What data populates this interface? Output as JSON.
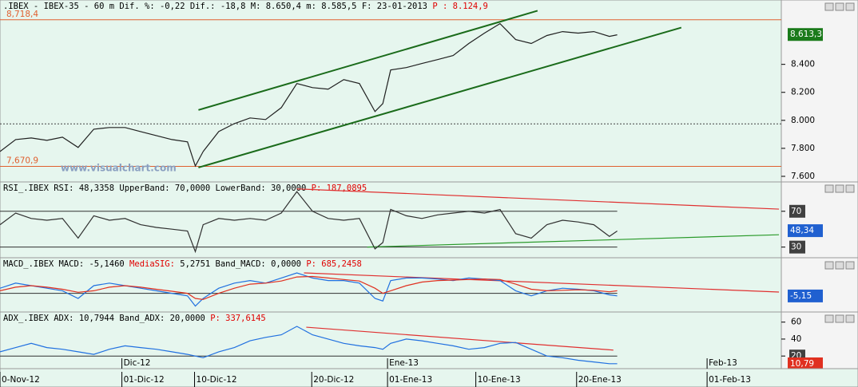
{
  "chart_data": [
    {
      "type": "line",
      "title_segments": [
        {
          "text": ".IBEX - IBEX-35 -  60 m Dif. %:  -0,22 Dif.: -18,8 M: 8.650,4 m: 8.585,5 F: 23-01-2013",
          "color": "#000000"
        },
        {
          "text": "P : 8.124,9",
          "color": "#e00000"
        }
      ],
      "x": [
        0,
        2,
        4,
        6,
        8,
        10,
        12,
        14,
        16,
        18,
        20,
        22,
        24,
        25,
        26,
        28,
        30,
        32,
        34,
        36,
        38,
        40,
        42,
        44,
        46,
        48,
        49,
        50,
        52,
        54,
        56,
        58,
        60,
        62,
        64,
        66,
        68,
        70,
        72,
        74,
        76,
        78,
        79
      ],
      "series": [
        {
          "name": "IBEX-35",
          "color": "#202020",
          "values": [
            7777,
            7863,
            7874,
            7857,
            7880,
            7806,
            7937,
            7949,
            7949,
            7920,
            7891,
            7863,
            7846,
            7674,
            7777,
            7920,
            7977,
            8017,
            8006,
            8091,
            8263,
            8234,
            8223,
            8291,
            8263,
            8063,
            8120,
            8360,
            8377,
            8406,
            8434,
            8463,
            8549,
            8623,
            8691,
            8577,
            8549,
            8606,
            8634,
            8623,
            8634,
            8600,
            8611
          ]
        }
      ],
      "ylim": [
        7560,
        8780
      ],
      "yticks": [
        {
          "value": 8400,
          "label": "8.400"
        },
        {
          "value": 8200,
          "label": "8.200"
        },
        {
          "value": 8000,
          "label": "8.000"
        },
        {
          "value": 7800,
          "label": "7.800"
        },
        {
          "value": 7600,
          "label": "7.600"
        }
      ],
      "levels": [
        {
          "value": 8718.4,
          "label": "8,718,4",
          "color": "#e06030"
        },
        {
          "value": 7670.9,
          "label": "7,670,9",
          "color": "#e06030"
        },
        {
          "value": 7975,
          "color": "#404040",
          "dotted": true
        }
      ],
      "trendlines": [
        {
          "x": [
            25.4,
            68.8
          ],
          "y": [
            8074,
            8783
          ],
          "color": "#1a6b1a"
        },
        {
          "x": [
            25.4,
            87.2
          ],
          "y": [
            7663,
            8663
          ],
          "color": "#1a6b1a"
        }
      ],
      "last_value": {
        "value": 8613.3,
        "label": "8.613,3",
        "color": "#1a7a1a"
      },
      "watermark": "www.visualchart.com"
    },
    {
      "type": "line",
      "title_segments": [
        {
          "text": "RSI_.IBEX RSI: 48,3358 UpperBand: 70,0000 LowerBand: 30,0000",
          "color": "#000000"
        },
        {
          "text": "P: 187,0895",
          "color": "#e00000"
        }
      ],
      "series": [
        {
          "name": "RSI",
          "color": "#303030",
          "values": [
            55,
            68,
            62,
            60,
            62,
            40,
            65,
            60,
            62,
            55,
            52,
            50,
            48,
            25,
            55,
            62,
            60,
            62,
            60,
            68,
            92,
            70,
            62,
            60,
            62,
            28,
            35,
            72,
            65,
            62,
            66,
            68,
            70,
            68,
            72,
            45,
            40,
            55,
            60,
            58,
            55,
            42,
            48
          ]
        }
      ],
      "ylim": [
        19,
        101
      ],
      "yticks": [
        70,
        30
      ],
      "levels": [
        {
          "value": 70,
          "color": "#303030"
        },
        {
          "value": 30,
          "color": "#303030"
        }
      ],
      "trendlines": [
        {
          "x": [
            38,
            99.7
          ],
          "y": [
            95,
            72.4
          ],
          "color": "#e03030"
        },
        {
          "x": [
            47,
            99.7
          ],
          "y": [
            30,
            43.8
          ],
          "color": "#2a9a2a"
        }
      ],
      "last_value": {
        "value": 48.34,
        "label": "48,34",
        "color": "#2060d0"
      }
    },
    {
      "type": "line",
      "title_segments": [
        {
          "text": "MACD_.IBEX MACD: -5,1460",
          "color": "#000000"
        },
        {
          "text": "MediaSIG:",
          "color": "#e00000"
        },
        {
          "text": "5,2751 Band_MACD: 0,0000",
          "color": "#000000"
        },
        {
          "text": "P: 685,2458",
          "color": "#e00000"
        }
      ],
      "series": [
        {
          "name": "MACD",
          "color": "#2070e0",
          "values": [
            10,
            20,
            15,
            10,
            5,
            -10,
            15,
            20,
            15,
            10,
            5,
            0,
            -5,
            -25,
            -10,
            10,
            20,
            25,
            20,
            30,
            40,
            30,
            25,
            25,
            20,
            -10,
            -15,
            25,
            30,
            30,
            28,
            25,
            30,
            28,
            25,
            5,
            -5,
            5,
            10,
            8,
            5,
            -3,
            -5
          ]
        },
        {
          "name": "MediaSIG",
          "color": "#e03020",
          "values": [
            5,
            12,
            15,
            12,
            8,
            2,
            5,
            12,
            15,
            12,
            8,
            4,
            0,
            -10,
            -12,
            0,
            10,
            18,
            20,
            24,
            32,
            33,
            30,
            27,
            24,
            10,
            0,
            5,
            15,
            22,
            25,
            26,
            27,
            28,
            27,
            18,
            8,
            5,
            6,
            7,
            6,
            3,
            5
          ]
        }
      ],
      "ylim": [
        -35,
        65
      ],
      "levels": [
        {
          "value": 0,
          "color": "#303030"
        }
      ],
      "trendlines": [
        {
          "x": [
            38.9,
            99.7
          ],
          "y": [
            40,
            2.5
          ],
          "color": "#e03030"
        }
      ],
      "last_value": {
        "value": -5.15,
        "label": "-5,15",
        "color": "#2060d0"
      }
    },
    {
      "type": "line",
      "title_segments": [
        {
          "text": "ADX_.IBEX ADX: 10,7944 Band_ADX: 20,0000",
          "color": "#000000"
        },
        {
          "text": "P: 337,6145",
          "color": "#e00000"
        }
      ],
      "series": [
        {
          "name": "ADX",
          "color": "#2070e0",
          "values": [
            25,
            30,
            35,
            30,
            28,
            25,
            22,
            28,
            32,
            30,
            28,
            25,
            22,
            20,
            18,
            25,
            30,
            38,
            42,
            45,
            55,
            45,
            40,
            35,
            32,
            30,
            28,
            35,
            40,
            38,
            35,
            32,
            28,
            30,
            35,
            36,
            28,
            20,
            18,
            15,
            13,
            11,
            11
          ]
        }
      ],
      "ylim": [
        7,
        71
      ],
      "yticks": [
        60,
        40,
        20
      ],
      "levels": [
        {
          "value": 20,
          "color": "#303030"
        }
      ],
      "trendlines": [
        {
          "x": [
            39.2,
            78.5
          ],
          "y": [
            54,
            27
          ],
          "color": "#e03030"
        }
      ],
      "last_value": {
        "value": 10.79,
        "label": "10,79",
        "color": "#e03020"
      },
      "xlim": [
        0,
        100
      ],
      "xticks": [
        {
          "value": 0,
          "label": "0-Nov-12"
        },
        {
          "value": 15.6,
          "label": "01-Dic-12"
        },
        {
          "value": 24.9,
          "label": "10-Dic-12"
        },
        {
          "value": 39.9,
          "label": "20-Dic-12"
        },
        {
          "value": 49.6,
          "label": "01-Ene-13"
        },
        {
          "value": 60.9,
          "label": "10-Ene-13"
        },
        {
          "value": 73.8,
          "label": "20-Ene-13"
        },
        {
          "value": 90.5,
          "label": "01-Feb-13"
        }
      ],
      "month_ticks": [
        {
          "value": 15.6,
          "label": "Dic-12"
        },
        {
          "value": 49.6,
          "label": "Ene-13"
        },
        {
          "value": 90.5,
          "label": "Feb-13"
        }
      ]
    }
  ]
}
